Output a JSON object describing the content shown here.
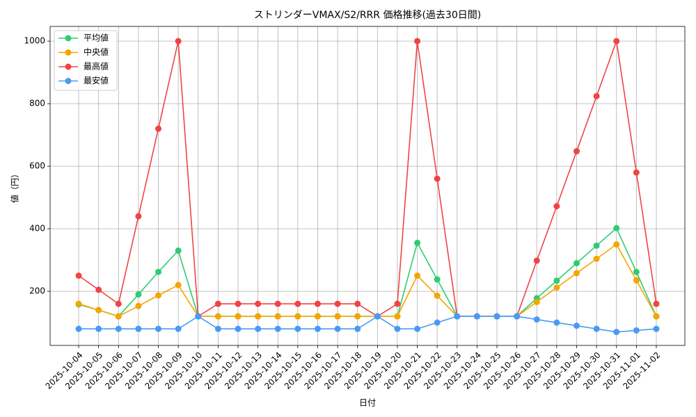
{
  "chart_data": {
    "type": "line",
    "title": "ストリンダーVMAX/S2/RRR 価格推移(過去30日間)",
    "x_label": "日付",
    "y_label": "値（円）",
    "categories": [
      "2025-10-04",
      "2025-10-05",
      "2025-10-06",
      "2025-10-07",
      "2025-10-08",
      "2025-10-09",
      "2025-10-10",
      "2025-10-11",
      "2025-10-12",
      "2025-10-13",
      "2025-10-14",
      "2025-10-15",
      "2025-10-16",
      "2025-10-17",
      "2025-10-18",
      "2025-10-19",
      "2025-10-20",
      "2025-10-21",
      "2025-10-22",
      "2025-10-23",
      "2025-10-24",
      "2025-10-25",
      "2025-10-26",
      "2025-10-27",
      "2025-10-28",
      "2025-10-29",
      "2025-10-30",
      "2025-10-31",
      "2025-11-01",
      "2025-11-02"
    ],
    "series": [
      {
        "name": "平均値",
        "color": "#2ecc71",
        "values": [
          158,
          140,
          120,
          190,
          262,
          330,
          120,
          120,
          120,
          120,
          120,
          120,
          120,
          120,
          120,
          120,
          120,
          355,
          238,
          120,
          120,
          120,
          120,
          178,
          234,
          290,
          346,
          402,
          262,
          120
        ]
      },
      {
        "name": "中央値",
        "color": "#f5a500",
        "values": [
          160,
          140,
          120,
          153,
          187,
          220,
          120,
          120,
          120,
          120,
          120,
          120,
          120,
          120,
          120,
          120,
          120,
          250,
          186,
          120,
          120,
          120,
          120,
          166,
          212,
          258,
          304,
          350,
          235,
          120
        ]
      },
      {
        "name": "最高値",
        "color": "#ef4444",
        "values": [
          250,
          205,
          160,
          440,
          720,
          1000,
          120,
          160,
          160,
          160,
          160,
          160,
          160,
          160,
          160,
          120,
          160,
          1000,
          560,
          120,
          120,
          120,
          120,
          298,
          472,
          648,
          824,
          1000,
          580,
          160
        ]
      },
      {
        "name": "最安値",
        "color": "#4a9af5",
        "values": [
          80,
          80,
          80,
          80,
          80,
          80,
          120,
          80,
          80,
          80,
          80,
          80,
          80,
          80,
          80,
          120,
          80,
          80,
          100,
          120,
          120,
          120,
          120,
          110,
          100,
          90,
          80,
          70,
          75,
          80
        ]
      }
    ],
    "ylim": [
      27,
      1047
    ],
    "yticks": [
      200,
      400,
      600,
      800,
      1000
    ],
    "grid": true,
    "legend": "upper-left"
  }
}
